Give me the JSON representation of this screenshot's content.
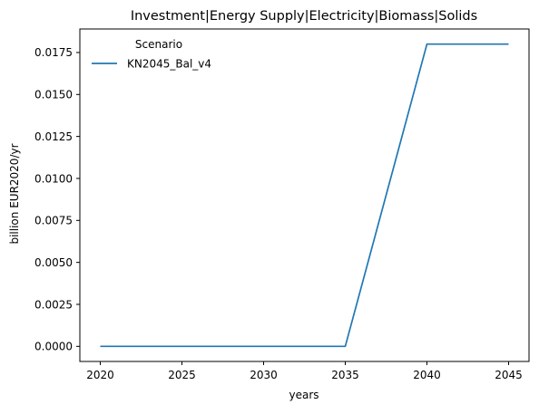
{
  "chart_data": {
    "type": "line",
    "title": "Investment|Energy Supply|Electricity|Biomass|Solids",
    "xlabel": "years",
    "ylabel": "billion EUR2020/yr",
    "xlim": [
      2018.75,
      2046.25
    ],
    "ylim": [
      -0.0009,
      0.0189
    ],
    "xticks": [
      2020,
      2025,
      2030,
      2035,
      2040,
      2045
    ],
    "xtick_labels": [
      "2020",
      "2025",
      "2030",
      "2035",
      "2040",
      "2045"
    ],
    "yticks": [
      0.0,
      0.0025,
      0.005,
      0.0075,
      0.01,
      0.0125,
      0.015,
      0.0175
    ],
    "ytick_labels": [
      "0.0000",
      "0.0025",
      "0.0050",
      "0.0075",
      "0.0100",
      "0.0125",
      "0.0150",
      "0.0175"
    ],
    "grid": false,
    "legend": {
      "title": "Scenario",
      "placement": "upper-left"
    },
    "series": [
      {
        "name": "KN2045_Bal_v4",
        "color": "#1f77b4",
        "x": [
          2020,
          2025,
          2030,
          2035,
          2040,
          2045
        ],
        "y": [
          0.0,
          0.0,
          0.0,
          0.0,
          0.018,
          0.018
        ]
      }
    ]
  }
}
